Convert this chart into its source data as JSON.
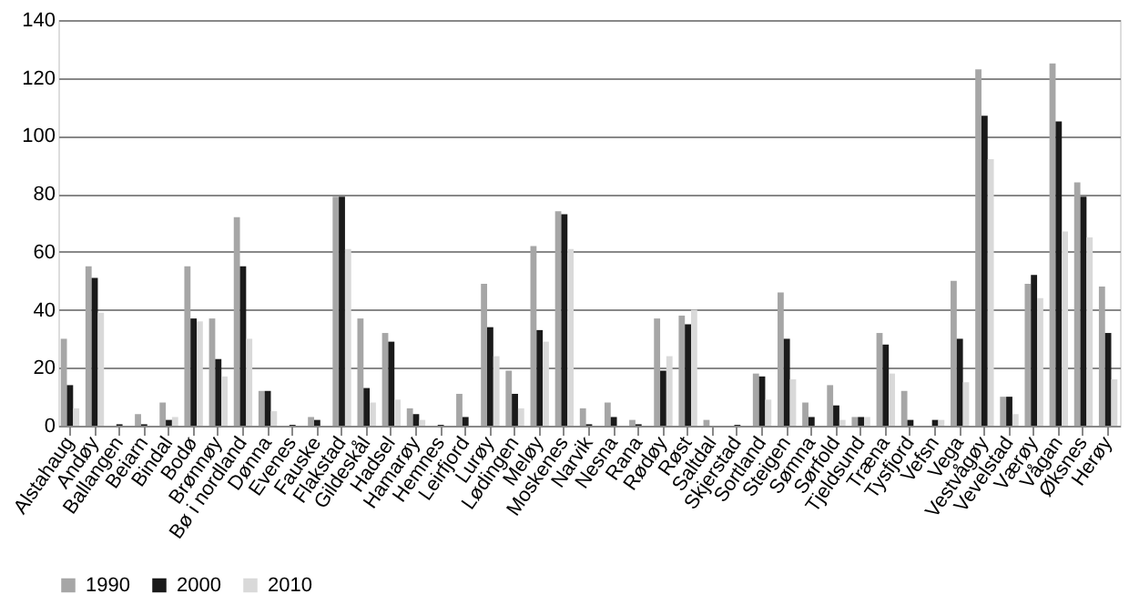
{
  "chart_data": {
    "type": "bar",
    "categories": [
      "Alstahaug",
      "Andøy",
      "Ballangen",
      "Beiarn",
      "Bindal",
      "Bodø",
      "Brønnøy",
      "Bø i nordland",
      "Dønna",
      "Evenes",
      "Fauske",
      "Flakstad",
      "Gildeskål",
      "Hadsel",
      "Hamarøy",
      "Hemnes",
      "Leirfjord",
      "Lurøy",
      "Lødingen",
      "Meløy",
      "Moskenes",
      "Narvik",
      "Nesna",
      "Rana",
      "Rødøy",
      "Røst",
      "Saltdal",
      "Skjerstad",
      "Sortland",
      "Steigen",
      "Sømna",
      "Sørfold",
      "Tjeldsund",
      "Træna",
      "Tysfjord",
      "Vefsn",
      "Vega",
      "Vestvågøy",
      "Vevelstad",
      "Værøy",
      "Vågan",
      "Øksnes",
      "Herøy"
    ],
    "series": [
      {
        "name": "1990",
        "color": "#a6a6a6",
        "values": [
          30,
          55,
          0,
          4,
          8,
          55,
          37,
          72,
          12,
          0,
          3,
          79,
          37,
          32,
          6,
          0,
          11,
          49,
          19,
          62,
          74,
          6,
          8,
          2,
          37,
          38,
          2,
          0,
          18,
          46,
          8,
          14,
          3,
          32,
          12,
          0,
          50,
          123,
          10,
          49,
          125,
          84,
          48
        ]
      },
      {
        "name": "2000",
        "color": "#1a1a1a",
        "values": [
          14,
          51,
          0.5,
          0.5,
          2,
          37,
          23,
          55,
          12,
          0.3,
          2,
          79,
          13,
          29,
          4,
          0.3,
          3,
          34,
          11,
          33,
          73,
          0.5,
          3,
          0.5,
          19,
          35,
          0,
          0.3,
          17,
          30,
          3,
          7,
          3,
          28,
          2,
          2,
          30,
          107,
          10,
          52,
          105,
          79,
          32
        ]
      },
      {
        "name": "2010",
        "color": "#d9d9d9",
        "values": [
          6,
          39,
          0,
          0,
          3,
          36,
          17,
          30,
          5,
          0,
          0,
          61,
          8,
          9,
          2,
          0,
          null,
          24,
          6,
          29,
          61,
          0,
          0,
          0,
          24,
          40,
          0,
          0,
          9,
          16,
          null,
          2,
          3,
          18,
          null,
          2,
          15,
          92,
          4,
          44,
          67,
          65,
          16
        ]
      }
    ],
    "ylim": [
      0,
      140
    ],
    "yticks": [
      0,
      20,
      40,
      60,
      80,
      100,
      120,
      140
    ],
    "grid": "y",
    "legend": "bottom"
  }
}
